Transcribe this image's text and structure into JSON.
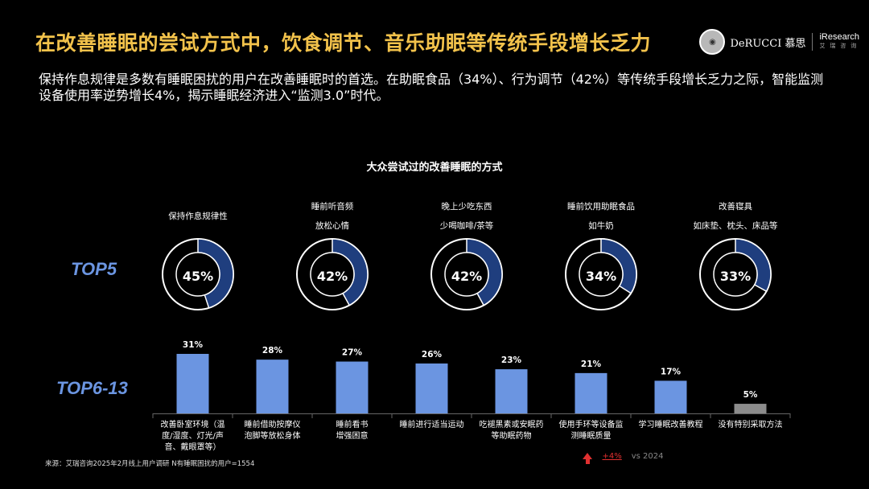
{
  "header": {
    "title": "在改善睡眠的尝试方式中，饮食调节、音乐助眠等传统手段增长乏力",
    "subtitle": "保持作息规律是多数有睡眠困扰的用户在改善睡眠时的首选。在助眠食品（34%）、行为调节（42%）等传统手段增长乏力之际，智能监测设备使用率逆势增长4%，揭示睡眠经济进入“监测3.0”时代。",
    "logo_derucci": "DeRUCCI 慕思",
    "logo_iresearch": "iResearch",
    "logo_iresearch_sub": "艾 瑞 咨 询"
  },
  "chart_data": [
    {
      "type": "pie",
      "title": "大众尝试过的改善睡眠的方式",
      "row_label": "TOP5",
      "items": [
        {
          "label_line1": "保持作息规律性",
          "label_line2": "",
          "value": 45,
          "display": "45%"
        },
        {
          "label_line1": "睡前听音频",
          "label_line2": "放松心情",
          "value": 42,
          "display": "42%"
        },
        {
          "label_line1": "晚上少吃东西",
          "label_line2": "少喝咖啡/茶等",
          "value": 42,
          "display": "42%"
        },
        {
          "label_line1": "睡前饮用助眠食品",
          "label_line2": "如牛奶",
          "value": 34,
          "display": "34%"
        },
        {
          "label_line1": "改善寝具",
          "label_line2": "如床垫、枕头、床品等",
          "value": 33,
          "display": "33%"
        }
      ],
      "colors": {
        "fill": "#1F3E7E",
        "ring": "#FFFFFF"
      }
    },
    {
      "type": "bar",
      "row_label": "TOP6-13",
      "categories": [
        "改善卧室环境（温度/湿度、灯光/声音、戴眼罩等）",
        "睡前借助按摩仪泡脚等放松身体",
        "睡前看书增强困意",
        "睡前进行适当运动",
        "吃褪黑素或安眠药等助眠药物",
        "使用手环等设备监测睡眠质量",
        "学习睡眠改善教程",
        "没有特别采取方法"
      ],
      "category_lines": [
        [
          "改善卧室环境（温",
          "度/湿度、灯光/声",
          "音、戴眼罩等）"
        ],
        [
          "睡前借助按摩仪",
          "泡脚等放松身体"
        ],
        [
          "睡前看书",
          "增强困意"
        ],
        [
          "睡前进行适当运动"
        ],
        [
          "吃褪黑素或安眠药",
          "等助眠药物"
        ],
        [
          "使用手环等设备监",
          "测睡眠质量"
        ],
        [
          "学习睡眠改善教程"
        ],
        [
          "没有特别采取方法"
        ]
      ],
      "values": [
        31,
        28,
        27,
        26,
        23,
        21,
        17,
        5
      ],
      "value_labels": [
        "31%",
        "28%",
        "27%",
        "26%",
        "23%",
        "21%",
        "17%",
        "5%"
      ],
      "bar_colors": [
        "#6B95E1",
        "#6B95E1",
        "#6B95E1",
        "#6B95E1",
        "#6B95E1",
        "#6B95E1",
        "#6B95E1",
        "#8C8C8C"
      ]
    }
  ],
  "annotation": {
    "growth": "+4%",
    "compare": "vs 2024"
  },
  "source": "来源：艾瑞咨询2025年2月线上用户调研 N有睡眠困扰的用户=1554"
}
